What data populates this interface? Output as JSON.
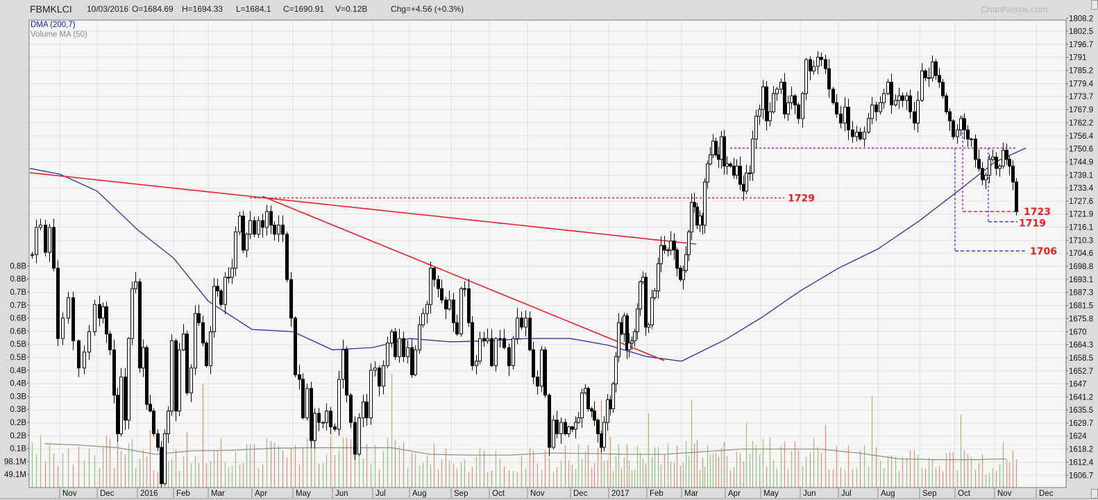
{
  "header": {
    "symbol": "FBMKLCI",
    "date": "10/03/2016",
    "open": "O=1684.69",
    "high": "H=1694.33",
    "low": "L=1684.1",
    "close": "C=1690.91",
    "volume": "V=0.12B",
    "change": "Chg=+4.56 (+0.3%)"
  },
  "watermark": "ChartNexus.com",
  "legend": {
    "dma": "DMA (200,7)",
    "volume_ma": "Volume MA (50)"
  },
  "colors": {
    "dma": "#1c1caa",
    "volume_ma": "#8a9a80",
    "volume_up": "#9cc184",
    "volume_down": "#d9957e",
    "trendline": "#ee1c24",
    "support_purple": "#a020c0",
    "support_blue": "#3a3af0",
    "plot_background": "#f6f6f6",
    "grid": "#e2e2e2"
  },
  "chart_data": {
    "type": "candlestick",
    "grid": true,
    "price_axis": {
      "side": "right",
      "ticks": [
        "1808.2",
        "1802.5",
        "1796.7",
        "1791",
        "1785.2",
        "1779.4",
        "1773.7",
        "1767.9",
        "1762.2",
        "1756.4",
        "1750.6",
        "1744.9",
        "1739.1",
        "1733.4",
        "1727.6",
        "1721.9",
        "1716.1",
        "1710.3",
        "1704.6",
        "1698.8",
        "1693.1",
        "1687.3",
        "1681.5",
        "1675.8",
        "1670",
        "1664.3",
        "1658.5",
        "1652.7",
        "1647",
        "1641.2",
        "1635.5",
        "1629.7",
        "1624",
        "1618.2",
        "1612.4",
        "1606.7"
      ]
    },
    "volume_axis": {
      "side": "left",
      "ticks": [
        {
          "label": "49.1M",
          "value_m": 49.1
        },
        {
          "label": "98.1M",
          "value_m": 98.1
        },
        {
          "label": "0.1B",
          "value_m": 147.2
        },
        {
          "label": "0.2B",
          "value_m": 196.3
        },
        {
          "label": "0.2B",
          "value_m": 245.4
        },
        {
          "label": "0.3B",
          "value_m": 294.5
        },
        {
          "label": "0.3B",
          "value_m": 343.6
        },
        {
          "label": "0.4B",
          "value_m": 392.7
        },
        {
          "label": "0.4B",
          "value_m": 441.8
        },
        {
          "label": "0.5B",
          "value_m": 490.9
        },
        {
          "label": "0.5B",
          "value_m": 540.0
        },
        {
          "label": "0.6B",
          "value_m": 589.1
        },
        {
          "label": "0.6B",
          "value_m": 638.2
        },
        {
          "label": "0.7B",
          "value_m": 687.3
        },
        {
          "label": "0.7B",
          "value_m": 736.4
        },
        {
          "label": "0.8B",
          "value_m": 785.5
        },
        {
          "label": "0.8B",
          "value_m": 834.6
        }
      ]
    },
    "x_axis": {
      "ticks": [
        "Nov",
        "Dec",
        "2016",
        "Feb",
        "Mar",
        "Apr",
        "May",
        "Jun",
        "Jul",
        "Aug",
        "Sep",
        "Oct",
        "Nov",
        "Dec",
        "2017",
        "Feb",
        "Mar",
        "Apr",
        "May",
        "Jun",
        "Jul",
        "Aug",
        "Sep",
        "Oct",
        "Nov",
        "Dec"
      ]
    },
    "months": [
      {
        "month": "2015-10",
        "dma_start": 1742,
        "volume_ma_m": 165,
        "closes": [
          1704,
          1716,
          1717,
          1705,
          1716,
          1698,
          1667
        ]
      },
      {
        "month": "2015-11",
        "dma_start": 1739.5,
        "volume_ma_m": 160,
        "closes": [
          1676,
          1685,
          1666,
          1654,
          1661,
          1670,
          1682
        ]
      },
      {
        "month": "2015-12",
        "dma_start": 1732,
        "volume_ma_m": 150,
        "closes": [
          1676,
          1681,
          1669,
          1662,
          1642,
          1625,
          1650,
          1631,
          1667,
          1689,
          1692
        ]
      },
      {
        "month": "2016-01",
        "dma_start": 1715,
        "volume_ma_m": 125,
        "closes": [
          1654,
          1663,
          1638,
          1635,
          1625,
          1619,
          1603,
          1625,
          1635,
          1666
        ]
      },
      {
        "month": "2016-02",
        "dma_start": 1702.5,
        "volume_ma_m": 138,
        "closes": [
          1635,
          1662,
          1669,
          1643,
          1654,
          1678,
          1674,
          1665,
          1655
        ]
      },
      {
        "month": "2016-03",
        "dma_start": 1683.5,
        "volume_ma_m": 140,
        "closes": [
          1670,
          1690,
          1688,
          1682,
          1694,
          1694,
          1698,
          1714,
          1721,
          1706,
          1713,
          1719
        ]
      },
      {
        "month": "2016-04",
        "dma_start": 1671,
        "volume_ma_m": 148,
        "closes": [
          1713,
          1719,
          1716,
          1723,
          1717,
          1713,
          1717,
          1713,
          1693,
          1676
        ]
      },
      {
        "month": "2016-05",
        "dma_start": 1670,
        "volume_ma_m": 150,
        "closes": [
          1651,
          1649,
          1632,
          1645,
          1622,
          1634,
          1630,
          1630,
          1635,
          1628
        ]
      },
      {
        "month": "2016-06",
        "dma_start": 1662,
        "volume_ma_m": 150,
        "closes": [
          1627,
          1649,
          1662,
          1642,
          1630,
          1616,
          1632,
          1639,
          1632,
          1653
        ]
      },
      {
        "month": "2016-07",
        "dma_start": 1663,
        "volume_ma_m": 150,
        "closes": [
          1654,
          1646,
          1655,
          1665,
          1670,
          1659,
          1667,
          1659,
          1663
        ]
      },
      {
        "month": "2016-08",
        "dma_start": 1667,
        "volume_ma_m": 125,
        "closes": [
          1651,
          1662,
          1673,
          1678,
          1682,
          1698,
          1693,
          1689,
          1684,
          1680,
          1684
        ]
      },
      {
        "month": "2016-09",
        "dma_start": 1665.5,
        "volume_ma_m": 122,
        "closes": [
          1674,
          1669,
          1689,
          1689,
          1674,
          1655,
          1657,
          1667,
          1666,
          1667
        ]
      },
      {
        "month": "2016-10",
        "dma_start": 1666,
        "volume_ma_m": 122,
        "closes": [
          1655,
          1667,
          1667,
          1663,
          1655,
          1667,
          1676,
          1672,
          1676
        ]
      },
      {
        "month": "2016-11",
        "dma_start": 1667,
        "volume_ma_m": 130,
        "closes": [
          1662,
          1650,
          1646,
          1662,
          1642,
          1619,
          1631,
          1625,
          1630,
          1625,
          1628
        ]
      },
      {
        "month": "2016-12",
        "dma_start": 1667,
        "volume_ma_m": 128,
        "closes": [
          1627,
          1630,
          1632,
          1643,
          1645,
          1636,
          1635,
          1631,
          1625,
          1619,
          1630,
          1640
        ]
      },
      {
        "month": "2017-01",
        "dma_start": 1664,
        "volume_ma_m": 125,
        "closes": [
          1636,
          1647,
          1659,
          1674,
          1669,
          1677,
          1662,
          1665,
          1666,
          1670,
          1680,
          1692,
          1694,
          1672
        ]
      },
      {
        "month": "2017-02",
        "dma_start": 1659,
        "volume_ma_m": 125,
        "closes": [
          1673,
          1685,
          1688,
          1700,
          1708,
          1706,
          1706,
          1710,
          1706,
          1698,
          1693
        ]
      },
      {
        "month": "2017-03",
        "dma_start": 1657,
        "volume_ma_m": 135,
        "closes": [
          1697,
          1704,
          1714,
          1727,
          1725,
          1717,
          1721,
          1717,
          1736,
          1744,
          1748,
          1754,
          1748,
          1746,
          1756,
          1743
        ]
      },
      {
        "month": "2017-04",
        "dma_start": 1666.5,
        "volume_ma_m": 145,
        "closes": [
          1744,
          1743,
          1739,
          1743,
          1735,
          1732,
          1740,
          1740,
          1755,
          1765,
          1768
        ]
      },
      {
        "month": "2017-05",
        "dma_start": 1676,
        "volume_ma_m": 145,
        "closes": [
          1778,
          1763,
          1767,
          1775,
          1777,
          1780,
          1766,
          1771,
          1774,
          1770,
          1764
        ]
      },
      {
        "month": "2017-06",
        "dma_start": 1688,
        "volume_ma_m": 145,
        "closes": [
          1775,
          1790,
          1785,
          1787,
          1791,
          1790,
          1786,
          1777,
          1771,
          1766
        ]
      },
      {
        "month": "2017-07",
        "dma_start": 1698,
        "volume_ma_m": 130,
        "closes": [
          1762,
          1769,
          1759,
          1756,
          1758,
          1755,
          1758,
          1764,
          1770,
          1767
        ]
      },
      {
        "month": "2017-08",
        "dma_start": 1706.5,
        "volume_ma_m": 108,
        "closes": [
          1771,
          1775,
          1780,
          1770,
          1772,
          1774,
          1772,
          1774,
          1767,
          1762,
          1772
        ]
      },
      {
        "month": "2017-09",
        "dma_start": 1719,
        "volume_ma_m": 105,
        "closes": [
          1785,
          1782,
          1782,
          1789,
          1783,
          1780,
          1774,
          1767,
          1763,
          1756
        ]
      },
      {
        "month": "2017-10",
        "dma_start": 1731,
        "volume_ma_m": 105,
        "closes": [
          1759,
          1764,
          1759,
          1755,
          1755,
          1746,
          1742,
          1737,
          1739,
          1746,
          1747
        ]
      },
      {
        "month": "2017-11",
        "dma_start": 1744.7,
        "volume_ma_m": 108,
        "closes": [
          1742,
          1743,
          1750,
          1746,
          1743,
          1736,
          1723
        ]
      }
    ],
    "dma_end": 1751,
    "annotations": [
      {
        "label": "1729",
        "value": 1729
      },
      {
        "label": "1723",
        "value": 1723
      },
      {
        "label": "1719",
        "value": 1718.5
      },
      {
        "label": "1706",
        "value": 1705.6
      }
    ],
    "purple_level": 1751
  }
}
